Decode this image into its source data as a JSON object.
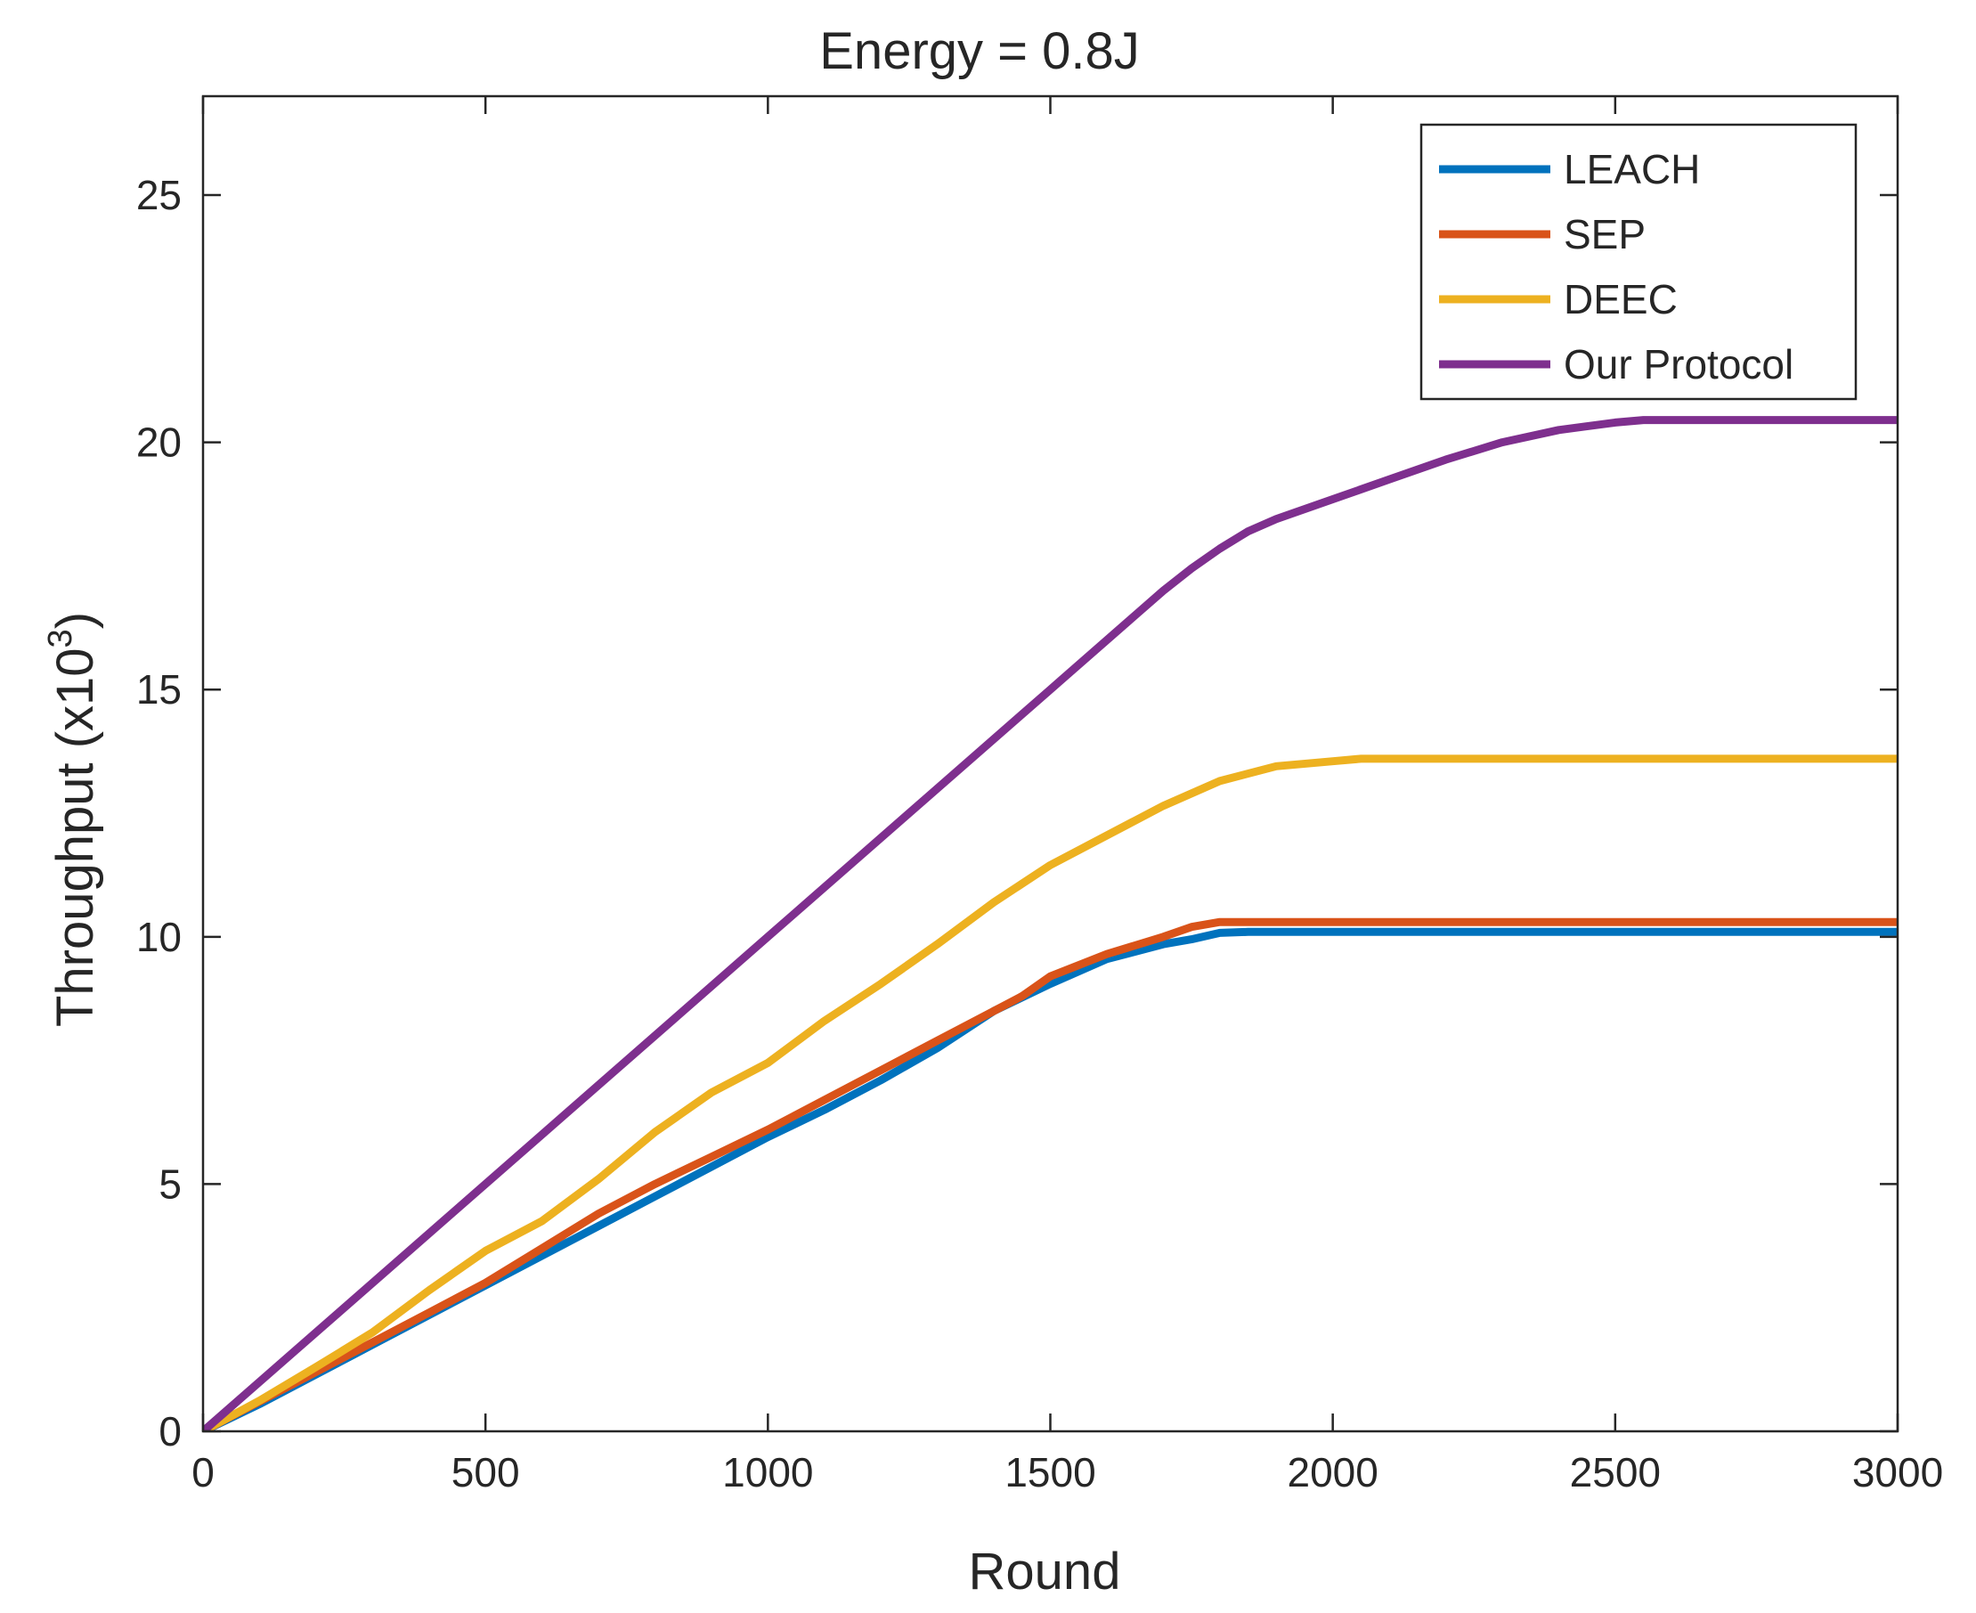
{
  "chart_data": {
    "type": "line",
    "title": "Energy = 0.8J",
    "xlabel": "Round",
    "ylabel": "Throughput (x10",
    "ylabel_exp": "3",
    "ylabel_close": ")",
    "xlim": [
      0,
      3000
    ],
    "ylim": [
      0,
      27
    ],
    "xticks": [
      0,
      500,
      1000,
      1500,
      2000,
      2500,
      3000
    ],
    "yticks": [
      0,
      5,
      10,
      15,
      20,
      25
    ],
    "xtick_labels": [
      "0",
      "500",
      "1000",
      "1500",
      "2000",
      "2500",
      "3000"
    ],
    "ytick_labels": [
      "0",
      "5",
      "10",
      "15",
      "20",
      "25"
    ],
    "grid": false,
    "legend_position": "top-right",
    "series": [
      {
        "name": "LEACH",
        "color": "#0072BD",
        "x": [
          0,
          100,
          200,
          300,
          400,
          500,
          600,
          700,
          800,
          900,
          1000,
          1100,
          1200,
          1300,
          1400,
          1500,
          1600,
          1700,
          1750,
          1800,
          1850,
          1900,
          2000,
          2500,
          3000
        ],
        "y": [
          0,
          0.55,
          1.15,
          1.75,
          2.35,
          2.95,
          3.55,
          4.15,
          4.75,
          5.35,
          5.95,
          6.5,
          7.1,
          7.75,
          8.5,
          9.05,
          9.55,
          9.85,
          9.95,
          10.08,
          10.1,
          10.1,
          10.1,
          10.1,
          10.1
        ]
      },
      {
        "name": "SEP",
        "color": "#D95319",
        "x": [
          0,
          100,
          200,
          300,
          400,
          500,
          600,
          700,
          800,
          900,
          1000,
          1100,
          1200,
          1300,
          1400,
          1450,
          1500,
          1600,
          1700,
          1750,
          1800,
          1850,
          1900,
          2000,
          2500,
          3000
        ],
        "y": [
          0,
          0.6,
          1.2,
          1.8,
          2.4,
          3.0,
          3.7,
          4.4,
          5.0,
          5.55,
          6.1,
          6.7,
          7.3,
          7.9,
          8.5,
          8.8,
          9.2,
          9.65,
          10.0,
          10.2,
          10.3,
          10.3,
          10.3,
          10.3,
          10.3,
          10.3
        ]
      },
      {
        "name": "DEEC",
        "color": "#EDB120",
        "x": [
          0,
          100,
          200,
          300,
          400,
          500,
          600,
          700,
          800,
          900,
          1000,
          1100,
          1200,
          1300,
          1400,
          1500,
          1600,
          1700,
          1800,
          1900,
          2000,
          2050,
          2500,
          3000
        ],
        "y": [
          0,
          0.62,
          1.3,
          2.0,
          2.85,
          3.65,
          4.25,
          5.1,
          6.05,
          6.85,
          7.45,
          8.3,
          9.05,
          9.85,
          10.7,
          11.45,
          12.05,
          12.65,
          13.15,
          13.45,
          13.55,
          13.6,
          13.6,
          13.6
        ]
      },
      {
        "name": "Our Protocol",
        "color": "#7E2F8E",
        "x": [
          0,
          500,
          1000,
          1500,
          1650,
          1700,
          1750,
          1800,
          1850,
          1900,
          2000,
          2100,
          2200,
          2300,
          2400,
          2500,
          2550,
          3000
        ],
        "y": [
          0,
          5.0,
          10.0,
          15.0,
          16.5,
          17.0,
          17.45,
          17.85,
          18.2,
          18.45,
          18.85,
          19.25,
          19.65,
          20.0,
          20.25,
          20.4,
          20.45,
          20.45
        ]
      }
    ]
  }
}
